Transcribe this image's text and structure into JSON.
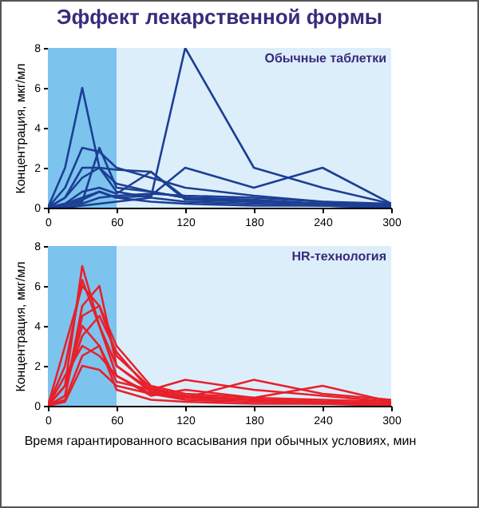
{
  "chart_data": [
    {
      "type": "line",
      "title": "Эффект лекарственной формы",
      "ylabel": "Концентрация, мкг/мл",
      "annotations": [
        "Обычные таблетки"
      ],
      "x": [
        0,
        15,
        30,
        45,
        60,
        90,
        120,
        180,
        240,
        300
      ],
      "xlim": [
        0,
        300
      ],
      "ylim": [
        0,
        8
      ],
      "xticks": [
        0,
        60,
        120,
        180,
        240,
        300
      ],
      "yticks": [
        0,
        2,
        4,
        6,
        8
      ],
      "grid": false,
      "bands": [
        {
          "axis": "x",
          "from": 0,
          "to": 60,
          "color": "#7cc4ee"
        },
        {
          "axis": "x",
          "from": 60,
          "to": 300,
          "color": "#ddeefb"
        }
      ],
      "series": [
        {
          "color": "#1c3f94",
          "values": [
            0,
            2,
            6,
            2,
            0.8,
            0.5,
            0.3,
            0.2,
            0.1,
            0
          ]
        },
        {
          "color": "#1c3f94",
          "values": [
            0,
            0,
            0.1,
            0.2,
            0.3,
            0.5,
            8,
            2,
            1,
            0.2
          ]
        },
        {
          "color": "#1c3f94",
          "values": [
            0,
            1,
            3,
            2.8,
            2,
            1.5,
            1,
            0.6,
            0.3,
            0.1
          ]
        },
        {
          "color": "#1c3f94",
          "values": [
            0,
            0.5,
            2,
            2,
            1.9,
            1.8,
            0.5,
            0.3,
            0.2,
            0.1
          ]
        },
        {
          "color": "#1c3f94",
          "values": [
            0,
            0.2,
            0.5,
            0.8,
            0.5,
            0.6,
            2,
            1,
            2,
            0.2
          ]
        },
        {
          "color": "#1c3f94",
          "values": [
            0,
            0.1,
            0.3,
            3,
            1,
            0.8,
            0.5,
            0.4,
            0.2,
            0.1
          ]
        },
        {
          "color": "#1c3f94",
          "values": [
            0,
            0.5,
            1.5,
            2,
            1.2,
            0.8,
            0.5,
            0.3,
            0.2,
            0.1
          ]
        },
        {
          "color": "#1c3f94",
          "values": [
            0,
            0.2,
            0.8,
            1,
            0.7,
            1.8,
            0.4,
            0.3,
            0.2,
            0.1
          ]
        },
        {
          "color": "#1c3f94",
          "values": [
            0,
            0,
            0.2,
            0.5,
            0.6,
            0.7,
            0.6,
            0.5,
            0.3,
            0.2
          ]
        },
        {
          "color": "#1c3f94",
          "values": [
            0,
            0.1,
            0.4,
            0.8,
            0.5,
            0.3,
            0.2,
            0.1,
            0.1,
            0
          ]
        }
      ]
    },
    {
      "type": "line",
      "xlabel": "Время гарантированного всасывания при обычных условиях, мин",
      "ylabel": "Концентрация, мкг/мл",
      "annotations": [
        "HR-технология"
      ],
      "x": [
        0,
        15,
        30,
        45,
        60,
        90,
        120,
        180,
        240,
        300
      ],
      "xlim": [
        0,
        300
      ],
      "ylim": [
        0,
        8
      ],
      "xticks": [
        0,
        60,
        120,
        180,
        240,
        300
      ],
      "yticks": [
        0,
        2,
        4,
        6,
        8
      ],
      "grid": false,
      "bands": [
        {
          "axis": "x",
          "from": 0,
          "to": 60,
          "color": "#7cc4ee"
        },
        {
          "axis": "x",
          "from": 60,
          "to": 300,
          "color": "#ddeefb"
        }
      ],
      "series": [
        {
          "color": "#e8202a",
          "values": [
            0,
            1,
            7,
            4,
            2,
            0.8,
            0.5,
            0.3,
            0.2,
            0.1
          ]
        },
        {
          "color": "#e8202a",
          "values": [
            0,
            3,
            6,
            5,
            3,
            1,
            0.6,
            0.4,
            0.3,
            0.2
          ]
        },
        {
          "color": "#e8202a",
          "values": [
            0,
            0.5,
            5,
            6,
            2,
            0.7,
            0.4,
            0.3,
            0.2,
            0.1
          ]
        },
        {
          "color": "#e8202a",
          "values": [
            0,
            1,
            4,
            3,
            1.2,
            0.8,
            1.3,
            0.8,
            0.5,
            0.2
          ]
        },
        {
          "color": "#e8202a",
          "values": [
            0,
            0.2,
            2,
            1.8,
            1,
            0.6,
            0.4,
            1.3,
            0.6,
            0.3
          ]
        },
        {
          "color": "#e8202a",
          "values": [
            0,
            1.5,
            3,
            2.5,
            1.5,
            0.5,
            0.8,
            0.4,
            1,
            0.2
          ]
        },
        {
          "color": "#e8202a",
          "values": [
            0,
            0.5,
            4.5,
            5,
            2.5,
            0.9,
            0.5,
            0.3,
            0.2,
            0.1
          ]
        },
        {
          "color": "#e8202a",
          "values": [
            0,
            2,
            6.3,
            4,
            1.5,
            0.6,
            0.3,
            0.2,
            0.1,
            0.1
          ]
        },
        {
          "color": "#e8202a",
          "values": [
            0,
            1,
            3.5,
            4.5,
            2.7,
            0.7,
            0.4,
            0.3,
            0.2,
            0.1
          ]
        },
        {
          "color": "#e8202a",
          "values": [
            0,
            0.3,
            2.5,
            3,
            0.8,
            0.3,
            0.2,
            0.1,
            0.1,
            0
          ]
        }
      ]
    }
  ]
}
